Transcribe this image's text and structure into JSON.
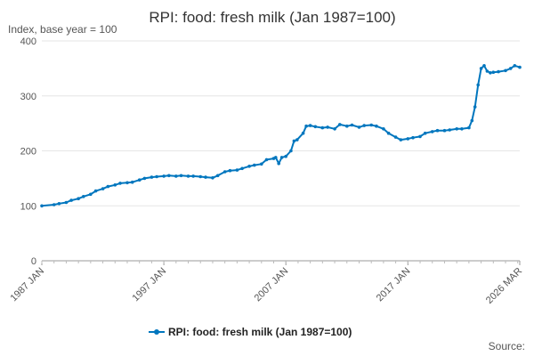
{
  "chart_data": {
    "type": "line",
    "title": "RPI: food: fresh milk (Jan 1987=100)",
    "subtitle": "Index, base year = 100",
    "xlabel": "",
    "ylabel": "",
    "ylim": [
      0,
      400
    ],
    "y_ticks": [
      0,
      100,
      200,
      300,
      400
    ],
    "x_ticks": [
      "1987 JAN",
      "1997 JAN",
      "2007 JAN",
      "2017 JAN",
      "2026 MAR"
    ],
    "xlim": [
      "1987-01",
      "2026-03"
    ],
    "grid": true,
    "legend_position": "bottom",
    "color": "#0076be",
    "series": [
      {
        "name": "RPI: food: fresh milk (Jan 1987=100)",
        "x": [
          "1987-01",
          "1988-01",
          "1988-06",
          "1989-01",
          "1989-06",
          "1990-01",
          "1990-06",
          "1991-01",
          "1991-06",
          "1992-01",
          "1992-06",
          "1993-01",
          "1993-06",
          "1994-01",
          "1994-06",
          "1995-01",
          "1995-06",
          "1996-01",
          "1996-06",
          "1997-01",
          "1997-06",
          "1998-01",
          "1998-06",
          "1999-01",
          "1999-06",
          "2000-01",
          "2000-06",
          "2001-01",
          "2001-06",
          "2002-01",
          "2002-06",
          "2003-01",
          "2003-06",
          "2004-01",
          "2004-06",
          "2005-01",
          "2005-06",
          "2006-01",
          "2006-03",
          "2006-06",
          "2006-09",
          "2007-01",
          "2007-06",
          "2007-09",
          "2007-12",
          "2008-06",
          "2008-09",
          "2009-01",
          "2009-06",
          "2010-01",
          "2010-06",
          "2011-01",
          "2011-06",
          "2012-01",
          "2012-06",
          "2013-01",
          "2013-06",
          "2014-01",
          "2014-06",
          "2015-01",
          "2015-06",
          "2016-01",
          "2016-06",
          "2017-01",
          "2017-06",
          "2018-01",
          "2018-06",
          "2019-01",
          "2019-06",
          "2020-01",
          "2020-06",
          "2021-01",
          "2021-06",
          "2022-01",
          "2022-04",
          "2022-07",
          "2022-10",
          "2023-01",
          "2023-04",
          "2023-07",
          "2023-10",
          "2024-01",
          "2024-06",
          "2025-01",
          "2025-06",
          "2025-10",
          "2026-03"
        ],
        "values": [
          100,
          102,
          104,
          106,
          110,
          113,
          117,
          121,
          127,
          131,
          135,
          138,
          141,
          142,
          143,
          147,
          150,
          152,
          153,
          154,
          155,
          154,
          155,
          154,
          154,
          153,
          152,
          151,
          155,
          162,
          164,
          165,
          168,
          172,
          174,
          176,
          184,
          186,
          188,
          177,
          188,
          190,
          200,
          218,
          220,
          232,
          245,
          246,
          244,
          242,
          243,
          240,
          248,
          245,
          247,
          243,
          246,
          247,
          245,
          240,
          232,
          225,
          220,
          222,
          224,
          226,
          232,
          235,
          237,
          237,
          238,
          240,
          240,
          242,
          255,
          280,
          320,
          350,
          355,
          345,
          342,
          343,
          344,
          346,
          350,
          355,
          352
        ]
      }
    ]
  },
  "source_label": "Source:"
}
